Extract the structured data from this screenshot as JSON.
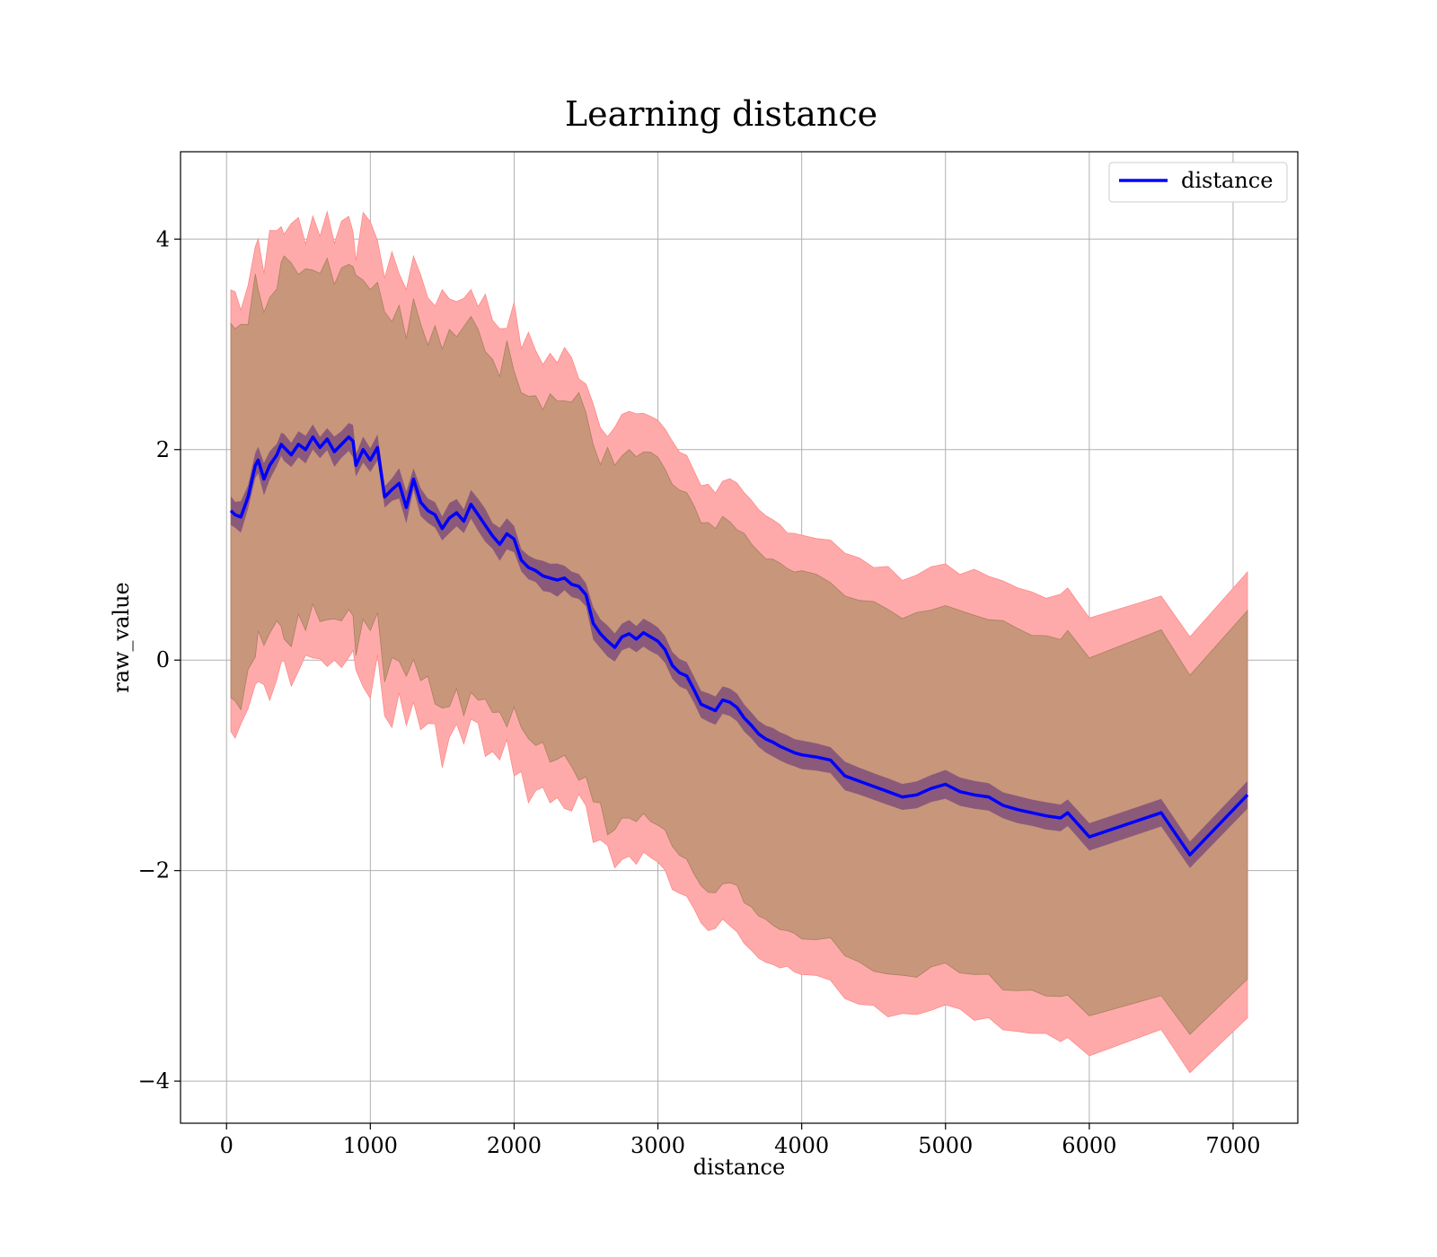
{
  "chart_data": {
    "type": "line",
    "title": "Learning distance",
    "xlabel": "distance",
    "ylabel": "raw_value",
    "xlim": [
      -320,
      7450
    ],
    "ylim": [
      -4.4,
      4.83
    ],
    "xticks": [
      0,
      1000,
      2000,
      3000,
      4000,
      5000,
      6000,
      7000
    ],
    "xtick_labels": [
      "0",
      "1000",
      "2000",
      "3000",
      "4000",
      "5000",
      "6000",
      "7000"
    ],
    "yticks": [
      -4,
      -2,
      0,
      2,
      4
    ],
    "ytick_labels": [
      "−4",
      "−2",
      "0",
      "2",
      "4"
    ],
    "grid": true,
    "legend": {
      "position": "top-right",
      "entries": [
        "distance"
      ]
    },
    "colors": {
      "line": "#0000ff",
      "outer_band": "#ffaaaa",
      "middle_band": "#c8967a",
      "inner_band": "#8b5a7a"
    },
    "series": [
      {
        "name": "distance",
        "x": [
          30,
          60,
          100,
          150,
          200,
          220,
          260,
          300,
          350,
          380,
          400,
          450,
          500,
          550,
          600,
          650,
          700,
          750,
          800,
          850,
          880,
          900,
          950,
          1000,
          1050,
          1100,
          1150,
          1200,
          1250,
          1300,
          1350,
          1400,
          1450,
          1500,
          1550,
          1600,
          1650,
          1700,
          1750,
          1800,
          1850,
          1900,
          1950,
          2000,
          2050,
          2100,
          2150,
          2200,
          2250,
          2300,
          2350,
          2400,
          2450,
          2500,
          2550,
          2600,
          2650,
          2700,
          2750,
          2800,
          2850,
          2900,
          2950,
          3000,
          3050,
          3100,
          3150,
          3200,
          3250,
          3300,
          3350,
          3400,
          3450,
          3500,
          3550,
          3600,
          3650,
          3700,
          3750,
          3800,
          3850,
          3900,
          3950,
          4000,
          4100,
          4200,
          4300,
          4400,
          4500,
          4600,
          4700,
          4800,
          4900,
          5000,
          5100,
          5200,
          5300,
          5400,
          5500,
          5600,
          5700,
          5800,
          5850,
          6000,
          6500,
          6700,
          7100
        ],
        "values": [
          1.42,
          1.38,
          1.36,
          1.55,
          1.85,
          1.9,
          1.72,
          1.85,
          1.95,
          2.05,
          2.02,
          1.95,
          2.05,
          2.0,
          2.12,
          2.02,
          2.1,
          1.98,
          2.05,
          2.12,
          2.08,
          1.85,
          2.0,
          1.9,
          2.02,
          1.55,
          1.62,
          1.68,
          1.45,
          1.72,
          1.5,
          1.42,
          1.38,
          1.25,
          1.35,
          1.4,
          1.32,
          1.48,
          1.38,
          1.28,
          1.18,
          1.1,
          1.2,
          1.15,
          0.95,
          0.88,
          0.85,
          0.8,
          0.78,
          0.76,
          0.78,
          0.72,
          0.7,
          0.62,
          0.35,
          0.25,
          0.18,
          0.12,
          0.22,
          0.25,
          0.2,
          0.26,
          0.22,
          0.18,
          0.1,
          -0.05,
          -0.12,
          -0.15,
          -0.28,
          -0.42,
          -0.45,
          -0.48,
          -0.38,
          -0.4,
          -0.45,
          -0.55,
          -0.62,
          -0.7,
          -0.75,
          -0.78,
          -0.82,
          -0.85,
          -0.88,
          -0.9,
          -0.92,
          -0.95,
          -1.1,
          -1.15,
          -1.2,
          -1.25,
          -1.3,
          -1.28,
          -1.22,
          -1.18,
          -1.25,
          -1.28,
          -1.3,
          -1.38,
          -1.42,
          -1.45,
          -1.48,
          -1.5,
          -1.45,
          -1.68,
          -1.45,
          -1.85,
          -1.28
        ],
        "band_inner": 0.13,
        "band_middle": 1.72,
        "band_outer": 2.1
      }
    ]
  }
}
